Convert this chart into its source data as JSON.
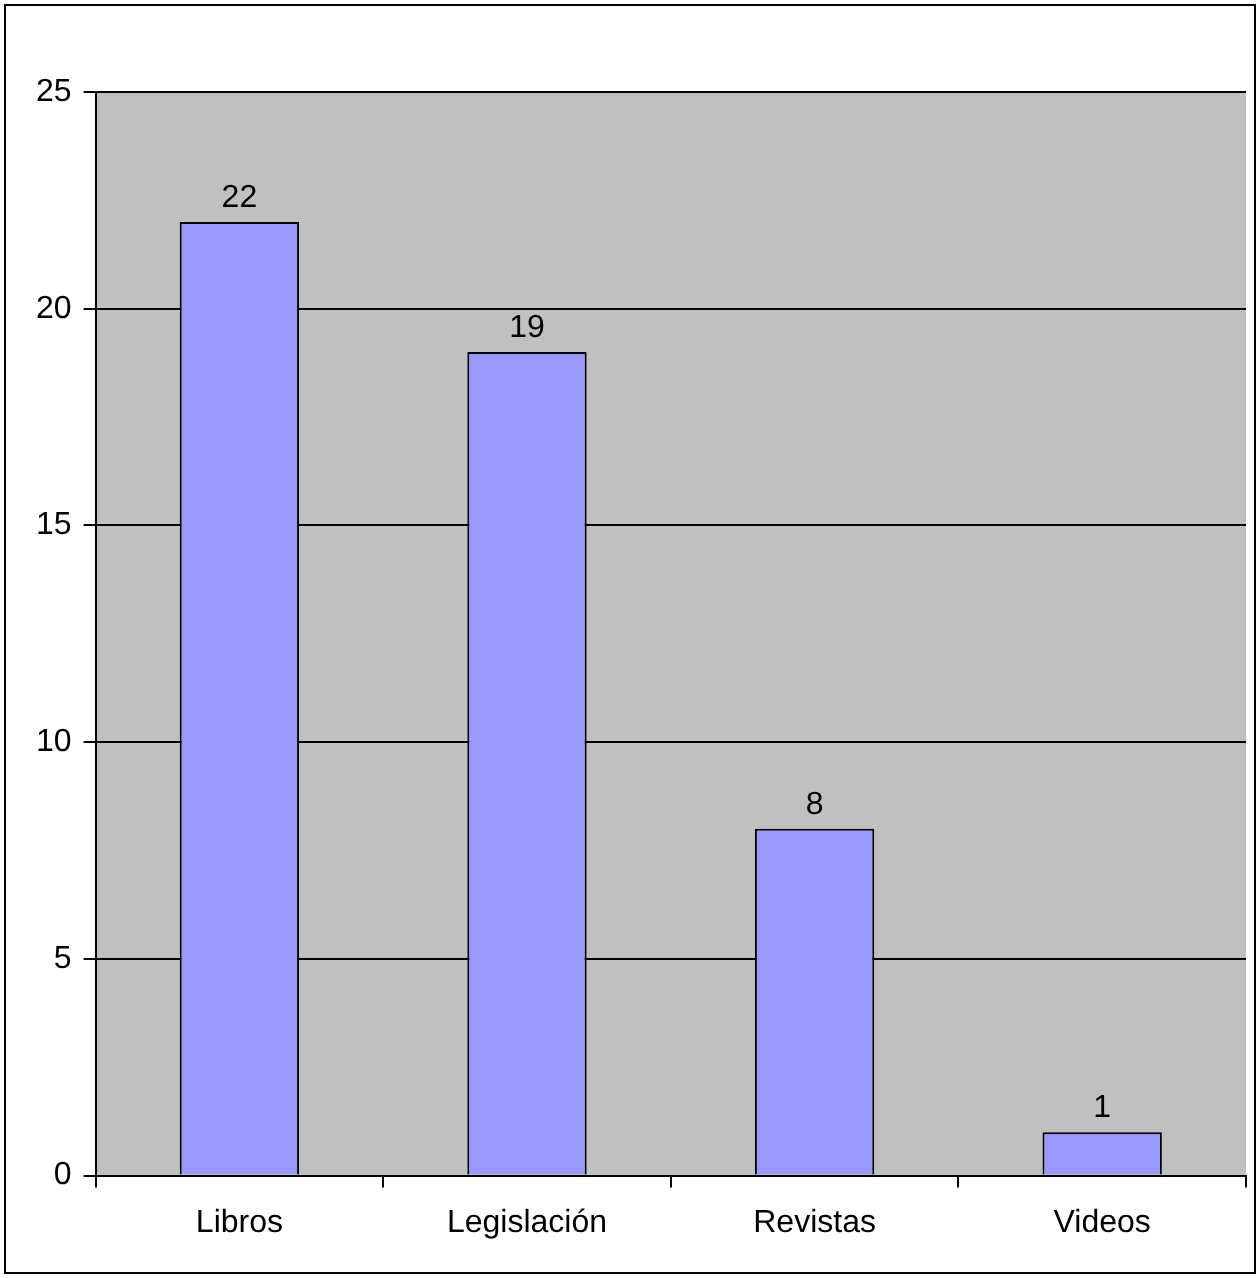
{
  "chart_data": {
    "type": "bar",
    "categories": [
      "Libros",
      "Legislación",
      "Revistas",
      "Videos"
    ],
    "values": [
      22,
      19,
      8,
      1
    ],
    "color": "#9999ff",
    "ylim": [
      0,
      25
    ],
    "yticks": [
      0,
      5,
      10,
      15,
      20,
      25
    ],
    "grid": "y",
    "data_labels": true
  }
}
